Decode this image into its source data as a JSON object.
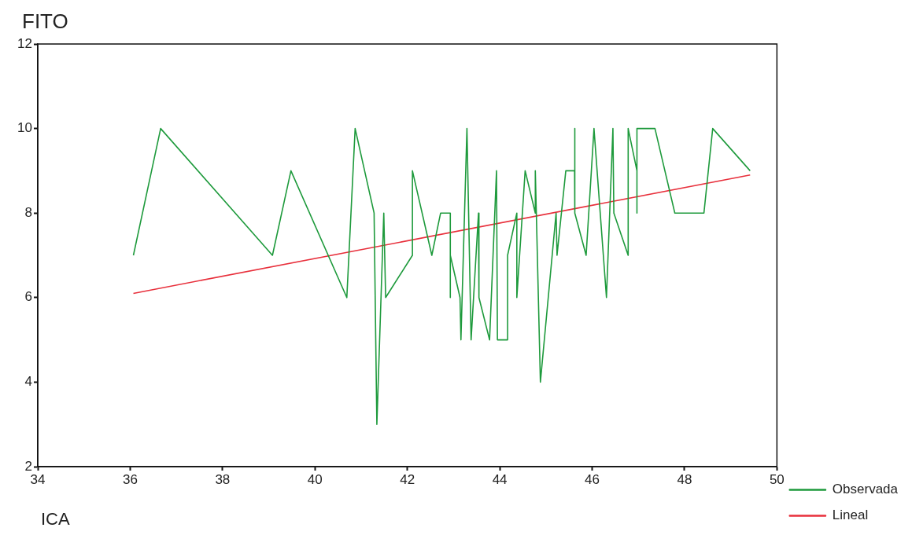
{
  "chart_data": {
    "type": "line",
    "ylabel": "FITO",
    "xlabel": "ICA",
    "xlim": [
      34,
      50
    ],
    "xticks": [
      34,
      36,
      38,
      40,
      42,
      44,
      46,
      48,
      50
    ],
    "ylim": [
      2,
      12
    ],
    "yticks": [
      2,
      4,
      6,
      8,
      10,
      12
    ],
    "grid": false,
    "legend": "bottom right",
    "series": [
      {
        "name": "Observada",
        "color": "#1e9a3c",
        "x": [
          36.07,
          36.66,
          39.08,
          39.48,
          40.69,
          40.87,
          41.28,
          41.34,
          41.49,
          41.53,
          42.11,
          42.11,
          42.53,
          42.72,
          42.93,
          42.93,
          42.93,
          43.14,
          43.16,
          43.29,
          43.38,
          43.54,
          43.55,
          43.78,
          43.93,
          43.95,
          44.17,
          44.17,
          44.37,
          44.37,
          44.55,
          44.77,
          44.77,
          44.88,
          45.22,
          45.24,
          45.43,
          45.62,
          45.62,
          45.63,
          45.87,
          46.04,
          46.31,
          46.45,
          46.47,
          46.78,
          46.78,
          46.97,
          46.97,
          46.97,
          47.36,
          47.79,
          48.42,
          48.61,
          49.42
        ],
        "values": [
          7,
          10,
          7,
          9,
          6,
          10,
          8,
          3,
          8,
          6,
          7,
          9,
          7,
          8,
          8,
          6,
          7,
          6,
          5,
          10,
          5,
          8,
          6,
          5,
          9,
          5,
          5,
          7,
          8,
          6,
          9,
          8,
          9,
          4,
          8,
          7,
          9,
          9,
          10,
          8,
          7,
          10,
          6,
          10,
          8,
          7,
          10,
          9,
          8,
          10,
          10,
          8,
          8,
          10,
          9
        ]
      },
      {
        "name": "Lineal",
        "color": "#e8303c",
        "x": [
          36.07,
          49.42
        ],
        "values": [
          6.1,
          8.9
        ]
      }
    ]
  }
}
